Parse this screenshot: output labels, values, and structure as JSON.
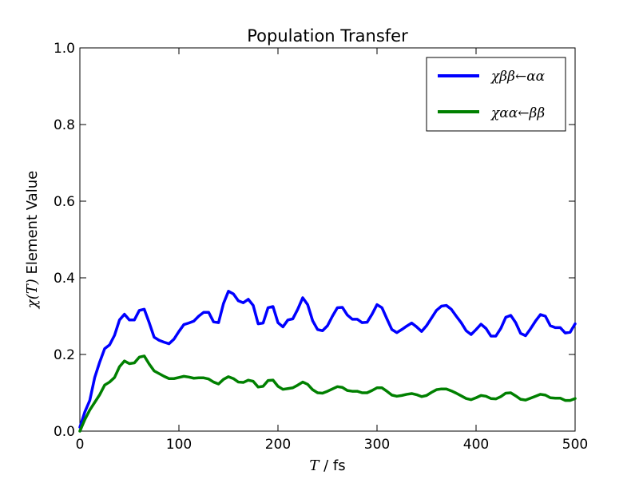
{
  "chart_data": {
    "type": "line",
    "title": "Population Transfer",
    "xlabel_symbol": "T",
    "xlabel_unit": " / fs",
    "ylabel_symbol": "χ(T)",
    "ylabel_text": " Element Value",
    "xlim": [
      0,
      500
    ],
    "ylim": [
      0,
      1.0
    ],
    "xticks": [
      0,
      100,
      200,
      300,
      400,
      500
    ],
    "xtick_labels": [
      "0",
      "100",
      "200",
      "300",
      "400",
      "500"
    ],
    "yticks": [
      0.0,
      0.2,
      0.4,
      0.6,
      0.8,
      1.0
    ],
    "ytick_labels": [
      "0.0",
      "0.2",
      "0.4",
      "0.6",
      "0.8",
      "1.0"
    ],
    "grid": false,
    "legend_position": "top-right",
    "series": [
      {
        "name": "χββ←αα",
        "color": "#0000ff",
        "x": [
          0,
          5,
          10,
          15,
          20,
          25,
          30,
          35,
          40,
          45,
          50,
          55,
          60,
          65,
          70,
          75,
          80,
          85,
          90,
          95,
          100,
          105,
          110,
          115,
          120,
          125,
          130,
          135,
          140,
          145,
          150,
          155,
          160,
          165,
          170,
          175,
          180,
          185,
          190,
          195,
          200,
          205,
          210,
          215,
          220,
          225,
          230,
          235,
          240,
          245,
          250,
          255,
          260,
          265,
          270,
          275,
          280,
          285,
          290,
          295,
          300,
          305,
          310,
          315,
          320,
          325,
          330,
          335,
          340,
          345,
          350,
          355,
          360,
          365,
          370,
          375,
          380,
          385,
          390,
          395,
          400,
          405,
          410,
          415,
          420,
          425,
          430,
          435,
          440,
          445,
          450,
          455,
          460,
          465,
          470,
          475,
          480,
          485,
          490,
          495,
          500
        ],
        "y": [
          0.01,
          0.05,
          0.08,
          0.14,
          0.18,
          0.215,
          0.225,
          0.25,
          0.29,
          0.305,
          0.29,
          0.29,
          0.315,
          0.318,
          0.283,
          0.245,
          0.237,
          0.232,
          0.228,
          0.24,
          0.26,
          0.278,
          0.282,
          0.287,
          0.3,
          0.31,
          0.31,
          0.285,
          0.283,
          0.333,
          0.365,
          0.358,
          0.34,
          0.335,
          0.344,
          0.328,
          0.28,
          0.282,
          0.322,
          0.325,
          0.283,
          0.272,
          0.29,
          0.293,
          0.318,
          0.348,
          0.33,
          0.288,
          0.265,
          0.262,
          0.275,
          0.3,
          0.322,
          0.323,
          0.303,
          0.292,
          0.292,
          0.283,
          0.284,
          0.305,
          0.33,
          0.322,
          0.293,
          0.265,
          0.257,
          0.265,
          0.274,
          0.282,
          0.272,
          0.26,
          0.275,
          0.295,
          0.315,
          0.326,
          0.328,
          0.318,
          0.3,
          0.283,
          0.262,
          0.252,
          0.265,
          0.279,
          0.268,
          0.248,
          0.248,
          0.268,
          0.297,
          0.302,
          0.283,
          0.255,
          0.249,
          0.267,
          0.287,
          0.304,
          0.3,
          0.275,
          0.27,
          0.27,
          0.256,
          0.258,
          0.28
        ]
      },
      {
        "name": "χαα←ββ",
        "color": "#008000",
        "x": [
          0,
          5,
          10,
          15,
          20,
          25,
          30,
          35,
          40,
          45,
          50,
          55,
          60,
          65,
          70,
          75,
          80,
          85,
          90,
          95,
          100,
          105,
          110,
          115,
          120,
          125,
          130,
          135,
          140,
          145,
          150,
          155,
          160,
          165,
          170,
          175,
          180,
          185,
          190,
          195,
          200,
          205,
          210,
          215,
          220,
          225,
          230,
          235,
          240,
          245,
          250,
          255,
          260,
          265,
          270,
          275,
          280,
          285,
          290,
          295,
          300,
          305,
          310,
          315,
          320,
          325,
          330,
          335,
          340,
          345,
          350,
          355,
          360,
          365,
          370,
          375,
          380,
          385,
          390,
          395,
          400,
          405,
          410,
          415,
          420,
          425,
          430,
          435,
          440,
          445,
          450,
          455,
          460,
          465,
          470,
          475,
          480,
          485,
          490,
          495,
          500
        ],
        "y": [
          0.0,
          0.03,
          0.055,
          0.075,
          0.095,
          0.12,
          0.128,
          0.14,
          0.168,
          0.183,
          0.176,
          0.178,
          0.193,
          0.196,
          0.175,
          0.157,
          0.15,
          0.143,
          0.137,
          0.137,
          0.14,
          0.143,
          0.141,
          0.138,
          0.139,
          0.139,
          0.136,
          0.128,
          0.123,
          0.135,
          0.142,
          0.137,
          0.128,
          0.127,
          0.133,
          0.13,
          0.115,
          0.117,
          0.132,
          0.133,
          0.117,
          0.109,
          0.111,
          0.113,
          0.12,
          0.128,
          0.122,
          0.108,
          0.1,
          0.099,
          0.104,
          0.11,
          0.116,
          0.114,
          0.106,
          0.104,
          0.104,
          0.1,
          0.1,
          0.106,
          0.113,
          0.113,
          0.104,
          0.094,
          0.091,
          0.093,
          0.096,
          0.098,
          0.095,
          0.09,
          0.093,
          0.101,
          0.108,
          0.11,
          0.11,
          0.105,
          0.099,
          0.092,
          0.085,
          0.082,
          0.087,
          0.093,
          0.091,
          0.085,
          0.084,
          0.09,
          0.099,
          0.1,
          0.092,
          0.083,
          0.081,
          0.086,
          0.091,
          0.096,
          0.094,
          0.087,
          0.086,
          0.086,
          0.08,
          0.08,
          0.085
        ]
      }
    ]
  }
}
